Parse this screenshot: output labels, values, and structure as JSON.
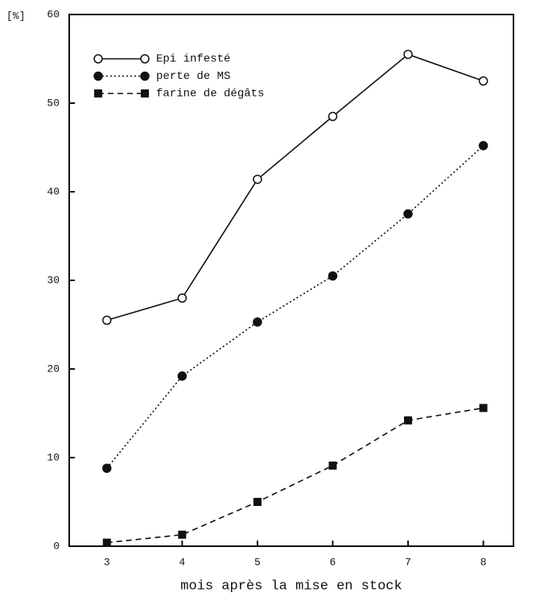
{
  "chart_data": {
    "type": "line",
    "ylabel": "[%]",
    "xlabel": "mois après la mise en stock",
    "x": [
      3,
      4,
      5,
      6,
      7,
      8
    ],
    "xlim": [
      2.5,
      8.4
    ],
    "xticks": [
      3,
      4,
      5,
      6,
      7,
      8
    ],
    "ylim": [
      0,
      60
    ],
    "yticks": [
      0,
      10,
      20,
      30,
      40,
      50,
      60
    ],
    "grid": false,
    "legend": "upper left",
    "series": [
      {
        "name": "Epi infesté",
        "color": "#111111",
        "dash": "solid",
        "marker": "open-circle",
        "values": [
          25.5,
          28,
          41.4,
          48.5,
          55.5,
          52.5
        ]
      },
      {
        "name": "perte de MS",
        "color": "#111111",
        "dash": "dotted",
        "marker": "filled-circle",
        "values": [
          8.8,
          19.2,
          25.3,
          30.5,
          37.5,
          45.2
        ]
      },
      {
        "name": "farine de dégâts",
        "color": "#111111",
        "dash": "dashed",
        "marker": "filled-square",
        "values": [
          0.4,
          1.3,
          5,
          9.1,
          14.2,
          15.6
        ]
      }
    ]
  }
}
